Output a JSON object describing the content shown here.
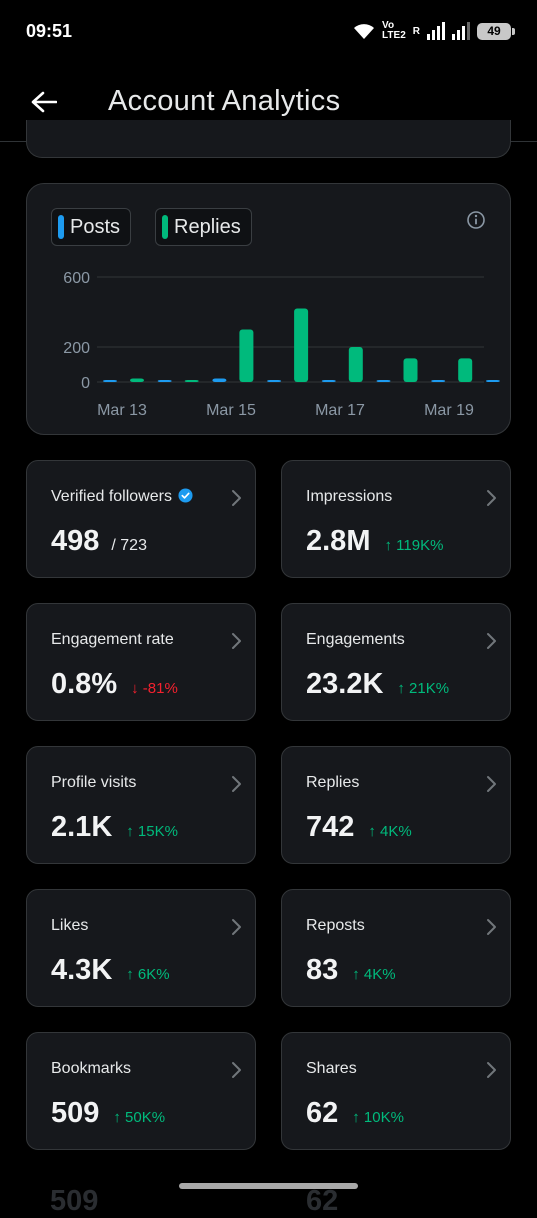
{
  "status_bar": {
    "time": "09:51",
    "volte_line1": "Vo",
    "volte_line2": "LTE2",
    "roaming": "R",
    "battery": "49"
  },
  "header": {
    "back_icon": "arrow-left-icon",
    "title": "Account Analytics"
  },
  "chart_data": {
    "type": "bar",
    "series": [
      {
        "name": "Posts",
        "color": "#1d9bf0",
        "values": [
          3,
          4,
          20,
          10,
          5,
          4,
          6,
          0
        ]
      },
      {
        "name": "Replies",
        "color": "#00ba7c",
        "values": [
          20,
          0,
          300,
          420,
          200,
          135,
          135,
          5
        ]
      }
    ],
    "x_tick_labels": [
      "Mar 13",
      "Mar 15",
      "Mar 17",
      "Mar 19"
    ],
    "y_tick_labels": [
      "600",
      "200",
      "0"
    ],
    "y_ticks": [
      600,
      200,
      0
    ],
    "ylim": [
      0,
      630
    ],
    "grid": true,
    "legend_position": "top-left"
  },
  "stats": [
    {
      "label": "Verified followers",
      "value": "498",
      "total": "/ 723",
      "delta": "",
      "direction": "none",
      "verified": true
    },
    {
      "label": "Impressions",
      "value": "2.8M",
      "total": "",
      "delta": "↑ 119K%",
      "direction": "up"
    },
    {
      "label": "Engagement rate",
      "value": "0.8%",
      "total": "",
      "delta": "↓ -81%",
      "direction": "down"
    },
    {
      "label": "Engagements",
      "value": "23.2K",
      "total": "",
      "delta": "↑ 21K%",
      "direction": "up"
    },
    {
      "label": "Profile visits",
      "value": "2.1K",
      "total": "",
      "delta": "↑ 15K%",
      "direction": "up"
    },
    {
      "label": "Replies",
      "value": "742",
      "total": "",
      "delta": "↑ 4K%",
      "direction": "up"
    },
    {
      "label": "Likes",
      "value": "4.3K",
      "total": "",
      "delta": "↑ 6K%",
      "direction": "up"
    },
    {
      "label": "Reposts",
      "value": "83",
      "total": "",
      "delta": "↑ 4K%",
      "direction": "up"
    },
    {
      "label": "Bookmarks",
      "value": "509",
      "total": "",
      "delta": "↑ 50K%",
      "direction": "up"
    },
    {
      "label": "Shares",
      "value": "62",
      "total": "",
      "delta": "↑ 10K%",
      "direction": "up"
    }
  ],
  "colors": {
    "posts": "#1d9bf0",
    "replies": "#00ba7c",
    "delta_up": "#00ba7c",
    "delta_down": "#f4212e",
    "verified_badge": "#1d9bf0"
  }
}
